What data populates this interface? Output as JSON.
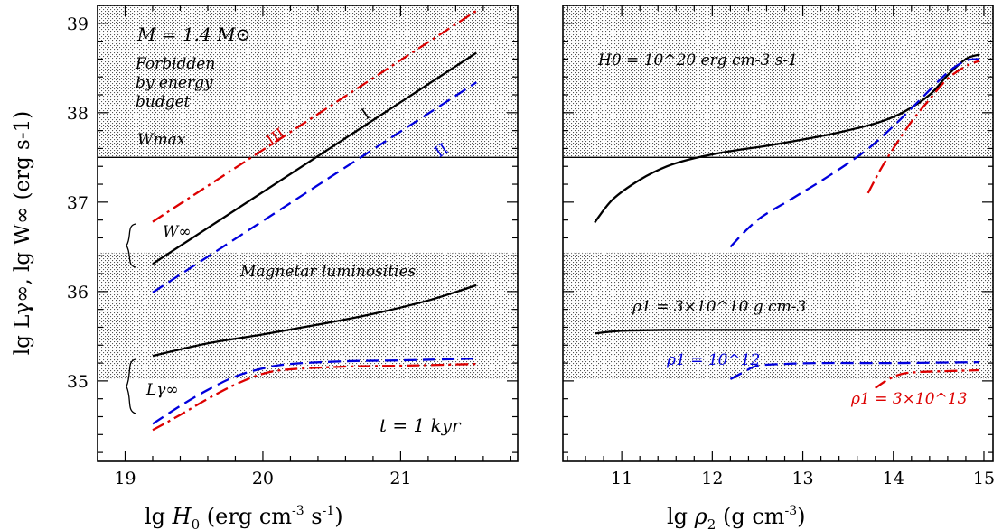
{
  "chart_data": [
    {
      "type": "line",
      "panel": "left",
      "xlabel": "lg H0 (erg cm-3 s-1)",
      "xlabel_parts": {
        "pre": "lg ",
        "var": "H",
        "sub": "0",
        "units_a": "  (erg cm",
        "exp1": "-3",
        "units_b": " s",
        "exp2": "-1",
        "units_c": ")"
      },
      "ylabel": "lg Lγ∞, lg W∞ (erg s-1)",
      "xlim": [
        18.8,
        21.85
      ],
      "ylim": [
        34.1,
        39.2
      ],
      "xticks": [
        "19",
        "20",
        "21"
      ],
      "yticks": [
        "35",
        "36",
        "37",
        "38",
        "39"
      ],
      "hatched_bands": [
        {
          "y": [
            37.5,
            39.2
          ],
          "label": "Forbidden by energy budget"
        },
        {
          "y": [
            35.03,
            36.43
          ],
          "label": "Magnetar luminosities"
        }
      ],
      "hlines": [
        {
          "y": 37.5,
          "label": "Wmax"
        }
      ],
      "annotations": {
        "mass": "M = 1.4 M⊙",
        "forbidden": [
          "Forbidden",
          "by energy",
          "budget"
        ],
        "wmax": "Wmax",
        "magnetar": "Magnetar luminosities",
        "w_inf": "W∞",
        "l_gamma": "Lγ∞",
        "time": "t = 1 kyr",
        "roman": [
          "I",
          "II",
          "III"
        ]
      },
      "series": [
        {
          "name": "I",
          "quantity": "W∞",
          "color": "#000000",
          "dash": "solid",
          "x": [
            19.2,
            21.55
          ],
          "y": [
            36.31,
            38.67
          ]
        },
        {
          "name": "II",
          "quantity": "W∞",
          "color": "#0000dd",
          "dash": "dashed",
          "x": [
            19.2,
            21.55
          ],
          "y": [
            35.99,
            38.34
          ]
        },
        {
          "name": "III",
          "quantity": "W∞",
          "color": "#dd0000",
          "dash": "dashdot",
          "x": [
            19.2,
            21.55
          ],
          "y": [
            36.78,
            39.14
          ]
        },
        {
          "name": "I",
          "quantity": "Lγ∞",
          "color": "#000000",
          "dash": "solid",
          "x": [
            19.2,
            19.6,
            20.0,
            20.4,
            20.8,
            21.2,
            21.55
          ],
          "y": [
            35.28,
            35.42,
            35.52,
            35.63,
            35.75,
            35.9,
            36.07
          ]
        },
        {
          "name": "II",
          "quantity": "Lγ∞",
          "color": "#0000dd",
          "dash": "dashed",
          "x": [
            19.2,
            19.4,
            19.6,
            19.8,
            20.0,
            20.2,
            20.6,
            21.0,
            21.55
          ],
          "y": [
            34.52,
            34.72,
            34.9,
            35.05,
            35.14,
            35.19,
            35.22,
            35.23,
            35.25
          ]
        },
        {
          "name": "III",
          "quantity": "Lγ∞",
          "color": "#dd0000",
          "dash": "dashdot",
          "x": [
            19.2,
            19.4,
            19.6,
            19.8,
            20.0,
            20.2,
            20.6,
            21.0,
            21.55
          ],
          "y": [
            34.45,
            34.62,
            34.8,
            34.96,
            35.08,
            35.13,
            35.16,
            35.17,
            35.19
          ]
        }
      ]
    },
    {
      "type": "line",
      "panel": "right",
      "xlabel": "lg ρ2 (g cm-3)",
      "xlabel_parts": {
        "pre": "lg ",
        "var": "ρ",
        "sub": "2",
        "units_a": "  (g cm",
        "exp1": "-3",
        "units_b": ")"
      },
      "xlim": [
        10.35,
        15.1
      ],
      "ylim": [
        34.1,
        39.2
      ],
      "xticks": [
        "11",
        "12",
        "13",
        "14",
        "15"
      ],
      "hatched_bands": [
        {
          "y": [
            37.5,
            39.2
          ],
          "label": "Forbidden"
        },
        {
          "y": [
            35.03,
            36.43
          ],
          "label": "Magnetar luminosities"
        }
      ],
      "hlines": [
        {
          "y": 37.5
        }
      ],
      "annotations": {
        "h0": "H0 = 10^20 erg cm-3 s-1",
        "rho1_black": "ρ1 = 3×10^10 g cm-3",
        "rho1_blue": "ρ1 = 10^12",
        "rho1_red": "ρ1 = 3×10^13"
      },
      "series": [
        {
          "name": "ρ1 = 3×10^10 g cm-3",
          "quantity": "W∞",
          "color": "#000000",
          "dash": "solid",
          "x": [
            10.7,
            10.9,
            11.2,
            11.5,
            11.8,
            12.2,
            12.6,
            13.0,
            13.4,
            13.8,
            14.1,
            14.4,
            14.6,
            14.8,
            14.95
          ],
          "y": [
            36.77,
            37.03,
            37.25,
            37.4,
            37.49,
            37.57,
            37.63,
            37.7,
            37.78,
            37.88,
            38.0,
            38.2,
            38.42,
            38.6,
            38.65
          ]
        },
        {
          "name": "ρ1 = 10^12",
          "quantity": "W∞",
          "color": "#0000dd",
          "dash": "dashed",
          "x": [
            12.2,
            12.5,
            12.9,
            13.3,
            13.7,
            14.0,
            14.3,
            14.6,
            14.8,
            14.95
          ],
          "y": [
            36.5,
            36.8,
            37.05,
            37.3,
            37.58,
            37.85,
            38.15,
            38.45,
            38.58,
            38.6
          ]
        },
        {
          "name": "ρ1 = 3×10^13",
          "quantity": "W∞",
          "color": "#dd0000",
          "dash": "dashdot",
          "x": [
            13.72,
            13.85,
            14.0,
            14.2,
            14.4,
            14.6,
            14.8,
            14.95
          ],
          "y": [
            37.1,
            37.35,
            37.6,
            37.9,
            38.15,
            38.38,
            38.52,
            38.58
          ]
        },
        {
          "name": "ρ1 = 3×10^10 g cm-3",
          "quantity": "Lγ∞",
          "color": "#000000",
          "dash": "solid",
          "x": [
            10.7,
            11.0,
            11.5,
            12.0,
            13.0,
            14.0,
            14.95
          ],
          "y": [
            35.53,
            35.56,
            35.57,
            35.57,
            35.57,
            35.57,
            35.57
          ]
        },
        {
          "name": "ρ1 = 10^12",
          "quantity": "Lγ∞",
          "color": "#0000dd",
          "dash": "dashed",
          "x": [
            12.2,
            12.35,
            12.5,
            12.8,
            13.2,
            14.0,
            14.95
          ],
          "y": [
            35.02,
            35.1,
            35.17,
            35.19,
            35.2,
            35.2,
            35.21
          ]
        },
        {
          "name": "ρ1 = 3×10^13",
          "quantity": "Lγ∞",
          "color": "#dd0000",
          "dash": "dashdot",
          "x": [
            13.8,
            13.95,
            14.1,
            14.3,
            14.6,
            14.95
          ],
          "y": [
            34.92,
            35.02,
            35.08,
            35.1,
            35.11,
            35.12
          ]
        }
      ]
    }
  ]
}
